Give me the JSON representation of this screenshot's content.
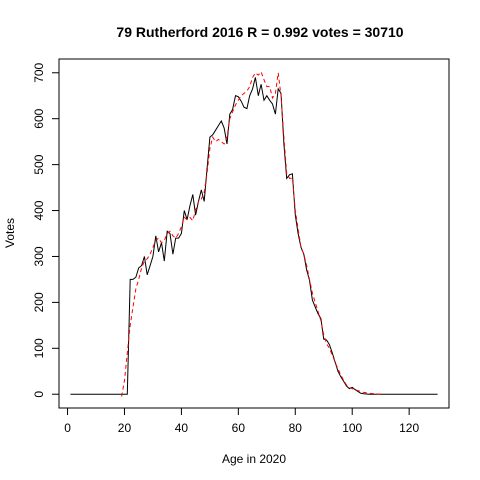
{
  "chart_data": {
    "type": "line",
    "title": "79 Rutherford 2016 R = 0.992 votes = 30710",
    "xlabel": "Age in 2020",
    "ylabel": "Votes",
    "xlim": [
      -3,
      134
    ],
    "ylim": [
      -30,
      730
    ],
    "xticks": [
      0,
      20,
      40,
      60,
      80,
      100,
      120
    ],
    "yticks": [
      0,
      100,
      200,
      300,
      400,
      500,
      600,
      700
    ],
    "grid": false,
    "series": [
      {
        "style": "solid",
        "color": "#000000",
        "points": [
          [
            1,
            0
          ],
          [
            21,
            0
          ],
          [
            22,
            250
          ],
          [
            23,
            250
          ],
          [
            24,
            255
          ],
          [
            25,
            275
          ],
          [
            26,
            280
          ],
          [
            27,
            300
          ],
          [
            28,
            260
          ],
          [
            29,
            280
          ],
          [
            30,
            300
          ],
          [
            31,
            345
          ],
          [
            32,
            310
          ],
          [
            33,
            330
          ],
          [
            34,
            290
          ],
          [
            35,
            355
          ],
          [
            36,
            350
          ],
          [
            37,
            305
          ],
          [
            38,
            340
          ],
          [
            39,
            340
          ],
          [
            40,
            350
          ],
          [
            41,
            400
          ],
          [
            42,
            380
          ],
          [
            43,
            410
          ],
          [
            44,
            435
          ],
          [
            45,
            390
          ],
          [
            46,
            420
          ],
          [
            47,
            445
          ],
          [
            48,
            420
          ],
          [
            49,
            490
          ],
          [
            50,
            560
          ],
          [
            51,
            565
          ],
          [
            52,
            575
          ],
          [
            53,
            585
          ],
          [
            54,
            595
          ],
          [
            55,
            580
          ],
          [
            56,
            545
          ],
          [
            57,
            610
          ],
          [
            58,
            620
          ],
          [
            59,
            650
          ],
          [
            60,
            648
          ],
          [
            61,
            638
          ],
          [
            62,
            625
          ],
          [
            63,
            622
          ],
          [
            64,
            650
          ],
          [
            65,
            665
          ],
          [
            66,
            690
          ],
          [
            67,
            650
          ],
          [
            68,
            675
          ],
          [
            69,
            640
          ],
          [
            70,
            650
          ],
          [
            71,
            640
          ],
          [
            72,
            632
          ],
          [
            73,
            610
          ],
          [
            74,
            665
          ],
          [
            75,
            655
          ],
          [
            76,
            545
          ],
          [
            77,
            470
          ],
          [
            78,
            478
          ],
          [
            79,
            480
          ],
          [
            80,
            390
          ],
          [
            81,
            350
          ],
          [
            82,
            320
          ],
          [
            83,
            305
          ],
          [
            84,
            270
          ],
          [
            85,
            248
          ],
          [
            86,
            205
          ],
          [
            87,
            190
          ],
          [
            88,
            175
          ],
          [
            89,
            165
          ],
          [
            90,
            120
          ],
          [
            91,
            118
          ],
          [
            92,
            108
          ],
          [
            93,
            90
          ],
          [
            94,
            70
          ],
          [
            95,
            50
          ],
          [
            96,
            38
          ],
          [
            97,
            28
          ],
          [
            98,
            18
          ],
          [
            99,
            12
          ],
          [
            100,
            15
          ],
          [
            101,
            10
          ],
          [
            102,
            6
          ],
          [
            103,
            2
          ],
          [
            104,
            1
          ],
          [
            106,
            0
          ],
          [
            130,
            0
          ]
        ]
      },
      {
        "style": "dashed",
        "color": "#ff0000",
        "points": [
          [
            19,
            -5
          ],
          [
            20,
            30
          ],
          [
            21,
            90
          ],
          [
            22,
            150
          ],
          [
            23,
            190
          ],
          [
            24,
            230
          ],
          [
            25,
            250
          ],
          [
            26,
            275
          ],
          [
            27,
            290
          ],
          [
            28,
            295
          ],
          [
            29,
            305
          ],
          [
            30,
            320
          ],
          [
            31,
            335
          ],
          [
            32,
            340
          ],
          [
            33,
            330
          ],
          [
            34,
            335
          ],
          [
            35,
            350
          ],
          [
            36,
            355
          ],
          [
            37,
            345
          ],
          [
            38,
            340
          ],
          [
            39,
            350
          ],
          [
            40,
            365
          ],
          [
            41,
            385
          ],
          [
            42,
            380
          ],
          [
            43,
            385
          ],
          [
            44,
            378
          ],
          [
            45,
            400
          ],
          [
            46,
            420
          ],
          [
            47,
            425
          ],
          [
            48,
            440
          ],
          [
            49,
            480
          ],
          [
            50,
            535
          ],
          [
            51,
            560
          ],
          [
            52,
            550
          ],
          [
            53,
            555
          ],
          [
            54,
            550
          ],
          [
            55,
            545
          ],
          [
            56,
            560
          ],
          [
            57,
            600
          ],
          [
            58,
            615
          ],
          [
            59,
            630
          ],
          [
            60,
            640
          ],
          [
            61,
            650
          ],
          [
            62,
            655
          ],
          [
            63,
            660
          ],
          [
            64,
            670
          ],
          [
            65,
            690
          ],
          [
            66,
            700
          ],
          [
            67,
            695
          ],
          [
            68,
            702
          ],
          [
            69,
            685
          ],
          [
            70,
            670
          ],
          [
            71,
            670
          ],
          [
            72,
            645
          ],
          [
            73,
            655
          ],
          [
            74,
            700
          ],
          [
            75,
            650
          ],
          [
            76,
            560
          ],
          [
            77,
            480
          ],
          [
            78,
            470
          ],
          [
            79,
            470
          ],
          [
            80,
            400
          ],
          [
            81,
            360
          ],
          [
            82,
            320
          ],
          [
            83,
            305
          ],
          [
            84,
            280
          ],
          [
            85,
            250
          ],
          [
            86,
            220
          ],
          [
            87,
            200
          ],
          [
            88,
            180
          ],
          [
            89,
            160
          ],
          [
            90,
            130
          ],
          [
            91,
            110
          ],
          [
            92,
            100
          ],
          [
            93,
            85
          ],
          [
            94,
            70
          ],
          [
            95,
            55
          ],
          [
            96,
            42
          ],
          [
            97,
            30
          ],
          [
            98,
            20
          ],
          [
            99,
            15
          ],
          [
            100,
            12
          ],
          [
            101,
            10
          ],
          [
            102,
            8
          ],
          [
            103,
            6
          ],
          [
            104,
            4
          ],
          [
            105,
            3
          ],
          [
            106,
            2
          ],
          [
            108,
            1
          ],
          [
            110,
            0
          ]
        ]
      }
    ]
  }
}
